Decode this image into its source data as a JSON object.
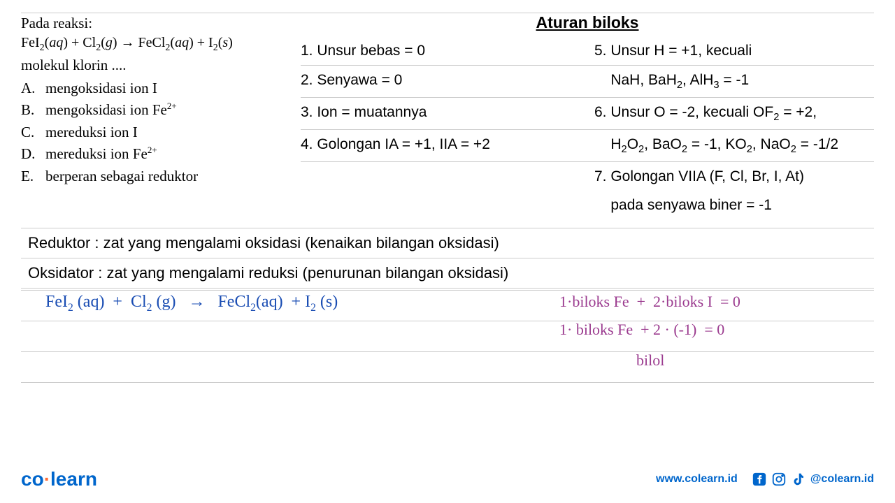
{
  "colors": {
    "text": "#000000",
    "border": "#cccccc",
    "handwriting_blue": "#1a4db3",
    "handwriting_purple": "#9b3b8f",
    "brand_blue": "#0066cc",
    "brand_orange": "#ff6b35"
  },
  "question": {
    "intro": "Pada reaksi:",
    "equation_html": "FeI<sub>2</sub>(<i>aq</i>) + Cl<sub>2</sub>(<i>g</i>) → FeCl<sub>2</sub>(<i>aq</i>) + I<sub>2</sub>(<i>s</i>)",
    "followup": "molekul klorin ....",
    "options": [
      {
        "letter": "A.",
        "text_html": "mengoksidasi ion I"
      },
      {
        "letter": "B.",
        "text_html": "mengoksidasi ion Fe<sup>2+</sup>"
      },
      {
        "letter": "C.",
        "text_html": "mereduksi ion I"
      },
      {
        "letter": "D.",
        "text_html": "mereduksi ion Fe<sup>2+</sup>"
      },
      {
        "letter": "E.",
        "text_html": "berperan sebagai reduktor"
      }
    ]
  },
  "rules": {
    "title": "Aturan biloks",
    "rows": [
      {
        "left_html": "1. Unsur bebas = 0",
        "right_html": "5. Unsur H = +1, kecuali"
      },
      {
        "left_html": "2. Senyawa = 0",
        "right_html": "&nbsp;&nbsp;&nbsp;&nbsp;NaH, BaH<sub>2</sub>, AlH<sub>3</sub> = -1"
      },
      {
        "left_html": "3. Ion = muatannya",
        "right_html": "6. Unsur O = -2, kecuali OF<sub>2</sub> = +2,"
      },
      {
        "left_html": "4. Golongan IA = +1, IIA = +2",
        "right_html": "&nbsp;&nbsp;&nbsp;&nbsp;H<sub>2</sub>O<sub>2</sub>, BaO<sub>2</sub> = -1, KO<sub>2</sub>, NaO<sub>2</sub> = -1/2"
      },
      {
        "left_html": "",
        "right_html": "7. Golongan VIIA (F, Cl, Br, I, At)"
      },
      {
        "left_html": "",
        "right_html": "&nbsp;&nbsp;&nbsp;&nbsp;pada senyawa biner = -1"
      }
    ]
  },
  "definitions": {
    "reduktor": "Reduktor : zat yang mengalami oksidasi (kenaikan bilangan oksidasi)",
    "oksidator": "Oksidator : zat yang mengalami reduksi (penurunan bilangan oksidasi)"
  },
  "handwriting": {
    "blue_equation_html": "FeI<sub>2</sub> (aq) &nbsp;+&nbsp; Cl<sub>2</sub> (g) &nbsp;&nbsp;→&nbsp;&nbsp; FeCl<sub>2</sub>(aq) &nbsp;+ I<sub>2</sub> (s)",
    "purple_line1_html": "1·biloks Fe &nbsp;+&nbsp; 2·biloks I&nbsp; = 0",
    "purple_line2_html": "1· biloks Fe &nbsp;+ 2 · (-1) &nbsp;= 0",
    "purple_line3_html": "bilol"
  },
  "footer": {
    "logo_co": "co",
    "logo_learn": "learn",
    "website": "www.colearn.id",
    "handle": "@colearn.id"
  }
}
